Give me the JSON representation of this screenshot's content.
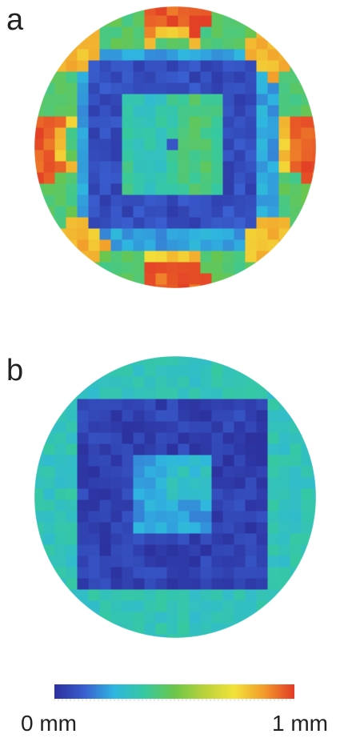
{
  "panels": [
    {
      "label": "a"
    },
    {
      "label": "b"
    }
  ],
  "colorbar": {
    "min_label": "0 mm",
    "max_label": "1 mm",
    "range_mm": [
      0,
      1
    ],
    "colormap": "jet",
    "stops": [
      "#2b2f9c",
      "#3a5fd0",
      "#2fb6e0",
      "#36c9a0",
      "#6cc64a",
      "#b9d23a",
      "#f3e23a",
      "#f29a2a",
      "#e23a26"
    ]
  }
}
